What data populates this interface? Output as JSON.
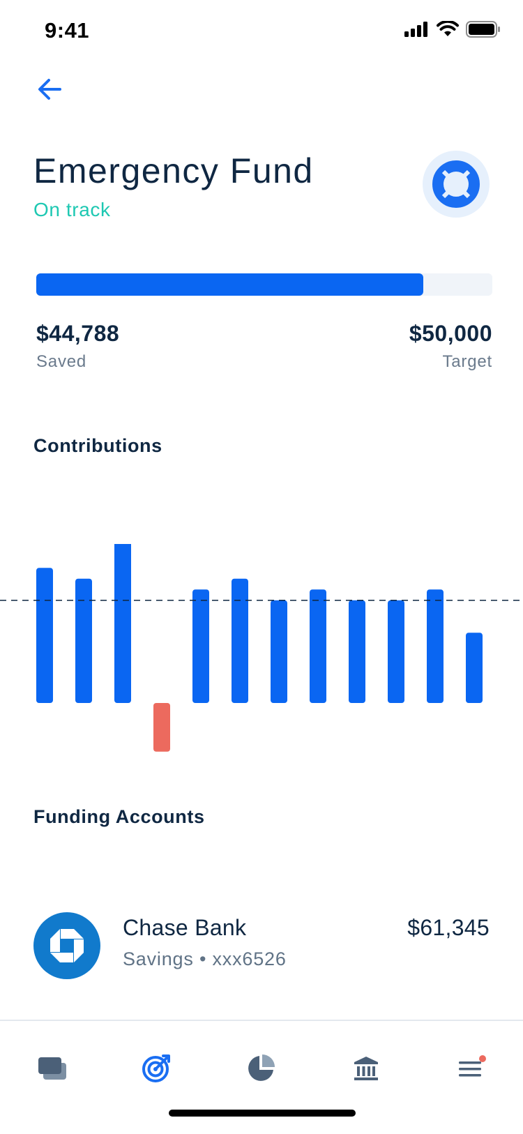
{
  "status_bar": {
    "time": "9:41"
  },
  "header": {
    "title": "Emergency Fund",
    "status": "On track",
    "status_color": "#1ec8b2",
    "goal_icon": "lifebuoy-icon"
  },
  "progress": {
    "saved_amount": "$44,788",
    "saved_label": "Saved",
    "target_amount": "$50,000",
    "target_label": "Target",
    "fraction": 0.896,
    "fill_color": "#0a66f2"
  },
  "contributions": {
    "title": "Contributions"
  },
  "chart_data": {
    "type": "bar",
    "values": [
      1250,
      1150,
      1550,
      -450,
      1050,
      1150,
      950,
      1050,
      950,
      950,
      1050,
      650
    ],
    "reference_line": 950,
    "positive_color": "#0a66f2",
    "negative_color": "#ec6a5e",
    "grid": false
  },
  "funding": {
    "title": "Funding Accounts",
    "accounts": [
      {
        "name": "Chase Bank",
        "detail": "Savings • xxx6526",
        "balance": "$61,345",
        "logo": "chase-logo"
      }
    ]
  },
  "tabbar": {
    "tabs": [
      {
        "icon": "cards-icon",
        "active": false
      },
      {
        "icon": "target-icon",
        "active": true
      },
      {
        "icon": "pie-chart-icon",
        "active": false
      },
      {
        "icon": "bank-icon",
        "active": false
      },
      {
        "icon": "menu-icon",
        "active": false,
        "badge": true
      }
    ],
    "active_color": "#1a6ef2",
    "inactive_color": "#4b6078"
  }
}
